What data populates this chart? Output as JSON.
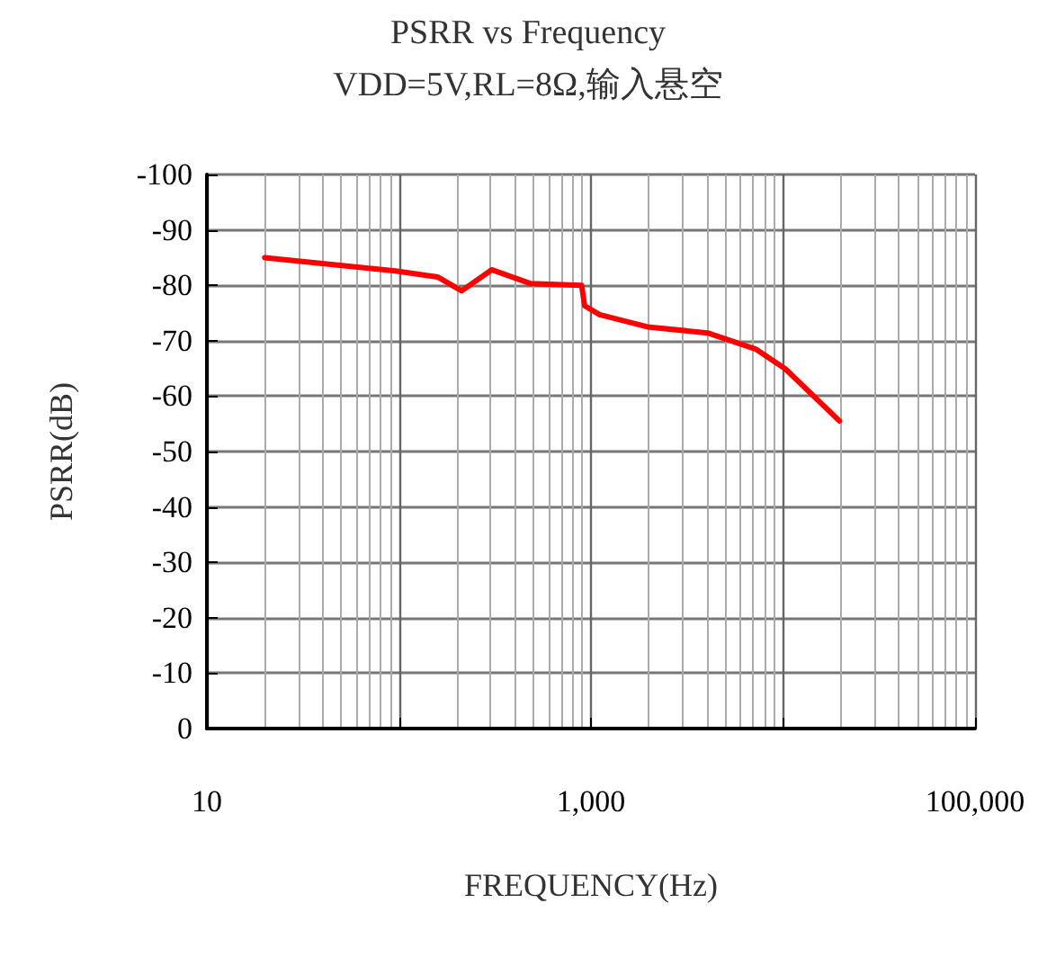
{
  "chart_data": {
    "type": "line",
    "title": "PSRR vs Frequency",
    "subtitle": "VDD=5V,RL=8Ω,输入悬空",
    "xlabel": "FREQUENCY(Hz)",
    "ylabel": "PSRR(dB)",
    "log": "x",
    "grid": true,
    "marker": "none",
    "line_style": "solid",
    "xlim": [
      10,
      100000
    ],
    "xticks": [
      {
        "value": 10,
        "label": "10"
      },
      {
        "value": 100,
        "label": null
      },
      {
        "value": 1000,
        "label": "1,000"
      },
      {
        "value": 10000,
        "label": null
      },
      {
        "value": 100000,
        "label": "100,000"
      }
    ],
    "ylim": [
      0,
      -100
    ],
    "yticks": [
      0,
      -10,
      -20,
      -30,
      -40,
      -50,
      -60,
      -70,
      -80,
      -90,
      -100
    ],
    "series": [
      {
        "color": "#ff0000",
        "x": [
          20,
          96,
          159,
          212,
          304,
          486,
          894,
          927,
          1110,
          1970,
          4050,
          7200,
          10300,
          19700
        ],
        "values": [
          -85,
          -82.6,
          -81.5,
          -79,
          -82.8,
          -80.3,
          -80,
          -76.3,
          -74.7,
          -72.5,
          -71.4,
          -68.5,
          -64.9,
          -55.5
        ]
      }
    ]
  }
}
